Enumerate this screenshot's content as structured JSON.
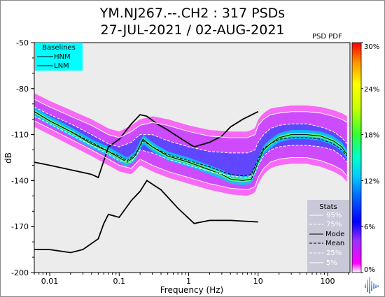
{
  "header": {
    "title_line1": "YM.NJ267.--.CH2 : 317 PSDs",
    "title_line2": "27-JUL-2021 / 02-AUG-2021",
    "psd_pdf_label": "PSD PDF"
  },
  "colors": {
    "plot_bg": "#ececec",
    "baseline_box": "#00ffff",
    "stats_box": "#c8c8d8",
    "model_line": "#000000",
    "logo": "#6fa3d8"
  },
  "logo_icon": "seismic-waveform-icon",
  "chart_data": {
    "type": "heatmap",
    "title": "YM.NJ267.--.CH2 : 317 PSDs",
    "subtitle": "27-JUL-2021 / 02-AUG-2021",
    "xlabel": "Frequency (Hz)",
    "ylabel": "dB",
    "xscale": "log",
    "xlim": [
      0.006,
      210
    ],
    "ylim": [
      -200,
      -50
    ],
    "x_ticks": [
      0.01,
      0.1,
      1,
      10,
      100
    ],
    "x_tick_labels": [
      "0.01",
      "0.1",
      "1",
      "10",
      "100"
    ],
    "y_ticks": [
      -50,
      -80,
      -110,
      -140,
      -170,
      -200
    ],
    "y_tick_labels": [
      "-50",
      "-80",
      "-110",
      "-140",
      "-170",
      "-200"
    ],
    "colorbar": {
      "label": "PSD PDF",
      "range": [
        0,
        30
      ],
      "tick_values": [
        0,
        6,
        12,
        18,
        24,
        30
      ],
      "tick_labels": [
        "0%",
        "6%",
        "12%",
        "18%",
        "24%",
        "30%"
      ]
    },
    "baselines_legend": {
      "title": "Baselines",
      "entries": [
        "HNM",
        "LNM"
      ],
      "placement": "top-left"
    },
    "stats_legend": {
      "title": "Stats",
      "entries": [
        "95%",
        "75%",
        "Mode",
        "Mean",
        "25%",
        "5%"
      ],
      "placement": "bottom-right"
    },
    "series": [
      {
        "name": "HNM",
        "x": [
          0.006,
          0.01,
          0.02,
          0.04,
          0.05,
          0.07,
          0.1,
          0.15,
          0.2,
          0.25,
          0.35,
          0.5,
          0.8,
          1.2,
          2,
          3,
          4,
          6,
          10
        ],
        "y": [
          -128,
          -130,
          -133,
          -136,
          -138,
          -118,
          -113,
          -103,
          -97,
          -98,
          -103,
          -107,
          -113,
          -118,
          -115,
          -111,
          -105,
          -100,
          -95
        ]
      },
      {
        "name": "LNM",
        "x": [
          0.006,
          0.01,
          0.02,
          0.03,
          0.05,
          0.06,
          0.07,
          0.1,
          0.15,
          0.2,
          0.25,
          0.4,
          0.7,
          1.2,
          2,
          4,
          10
        ],
        "y": [
          -185,
          -185,
          -187,
          -185,
          -178,
          -168,
          -162,
          -164,
          -153,
          -147,
          -140,
          -146,
          -158,
          -168,
          -166,
          -166,
          -167
        ]
      },
      {
        "name": "95%",
        "x": [
          0.006,
          0.01,
          0.02,
          0.04,
          0.07,
          0.1,
          0.15,
          0.2,
          0.3,
          0.5,
          1,
          2,
          4,
          7,
          9,
          10,
          12,
          15,
          20,
          30,
          50,
          80,
          120,
          160,
          190
        ],
        "y": [
          -87,
          -92,
          -98,
          -104,
          -110,
          -112,
          -108,
          -104,
          -102,
          -104,
          -108,
          -111,
          -112,
          -112,
          -110,
          -104,
          -100,
          -97,
          -96,
          -95,
          -95,
          -96,
          -98,
          -100,
          -102
        ]
      },
      {
        "name": "75%",
        "x": [
          0.006,
          0.01,
          0.02,
          0.04,
          0.07,
          0.1,
          0.15,
          0.2,
          0.3,
          0.5,
          1,
          2,
          4,
          7,
          9,
          10,
          12,
          15,
          20,
          30,
          50,
          80,
          120,
          160,
          190
        ],
        "y": [
          -92,
          -97,
          -103,
          -110,
          -116,
          -118,
          -115,
          -110,
          -110,
          -114,
          -118,
          -121,
          -122,
          -122,
          -120,
          -115,
          -110,
          -106,
          -104,
          -103,
          -103,
          -105,
          -108,
          -112,
          -116
        ]
      },
      {
        "name": "Mode",
        "x": [
          0.006,
          0.01,
          0.02,
          0.04,
          0.07,
          0.1,
          0.13,
          0.17,
          0.22,
          0.3,
          0.5,
          1,
          2,
          3,
          4,
          6,
          8,
          10,
          12,
          15,
          20,
          30,
          50,
          80,
          120,
          160,
          190
        ],
        "y": [
          -95,
          -101,
          -108,
          -116,
          -121,
          -125,
          -128,
          -124,
          -113,
          -118,
          -124,
          -128,
          -133,
          -136,
          -139,
          -140,
          -139,
          -128,
          -120,
          -116,
          -112,
          -110,
          -110,
          -111,
          -114,
          -118,
          -123
        ]
      },
      {
        "name": "Mean",
        "x": [
          0.006,
          0.01,
          0.02,
          0.04,
          0.07,
          0.1,
          0.13,
          0.17,
          0.22,
          0.3,
          0.5,
          1,
          2,
          3,
          4,
          6,
          8,
          10,
          12,
          15,
          20,
          30,
          50,
          80,
          120,
          160,
          190
        ],
        "y": [
          -95,
          -101,
          -108,
          -115,
          -121,
          -124,
          -127,
          -123,
          -114,
          -118,
          -123,
          -127,
          -131,
          -134,
          -136,
          -137,
          -136,
          -126,
          -119,
          -116,
          -113,
          -112,
          -112,
          -113,
          -116,
          -120,
          -124
        ]
      },
      {
        "name": "25%",
        "x": [
          0.006,
          0.01,
          0.02,
          0.04,
          0.07,
          0.1,
          0.15,
          0.2,
          0.3,
          0.5,
          1,
          2,
          4,
          7,
          9,
          10,
          12,
          15,
          20,
          30,
          50,
          80,
          120,
          160,
          190
        ],
        "y": [
          -98,
          -103,
          -110,
          -117,
          -123,
          -127,
          -128,
          -120,
          -122,
          -126,
          -130,
          -134,
          -137,
          -138,
          -136,
          -130,
          -124,
          -120,
          -118,
          -117,
          -117,
          -118,
          -120,
          -124,
          -128
        ]
      },
      {
        "name": "5%",
        "x": [
          0.006,
          0.01,
          0.02,
          0.04,
          0.07,
          0.1,
          0.15,
          0.2,
          0.3,
          0.5,
          1,
          2,
          4,
          7,
          9,
          10,
          12,
          15,
          20,
          30,
          50,
          80,
          120,
          160,
          190
        ],
        "y": [
          -101,
          -106,
          -113,
          -120,
          -126,
          -130,
          -132,
          -126,
          -130,
          -134,
          -138,
          -142,
          -145,
          -146,
          -144,
          -138,
          -132,
          -128,
          -126,
          -125,
          -125,
          -127,
          -130,
          -133,
          -137
        ]
      }
    ]
  }
}
